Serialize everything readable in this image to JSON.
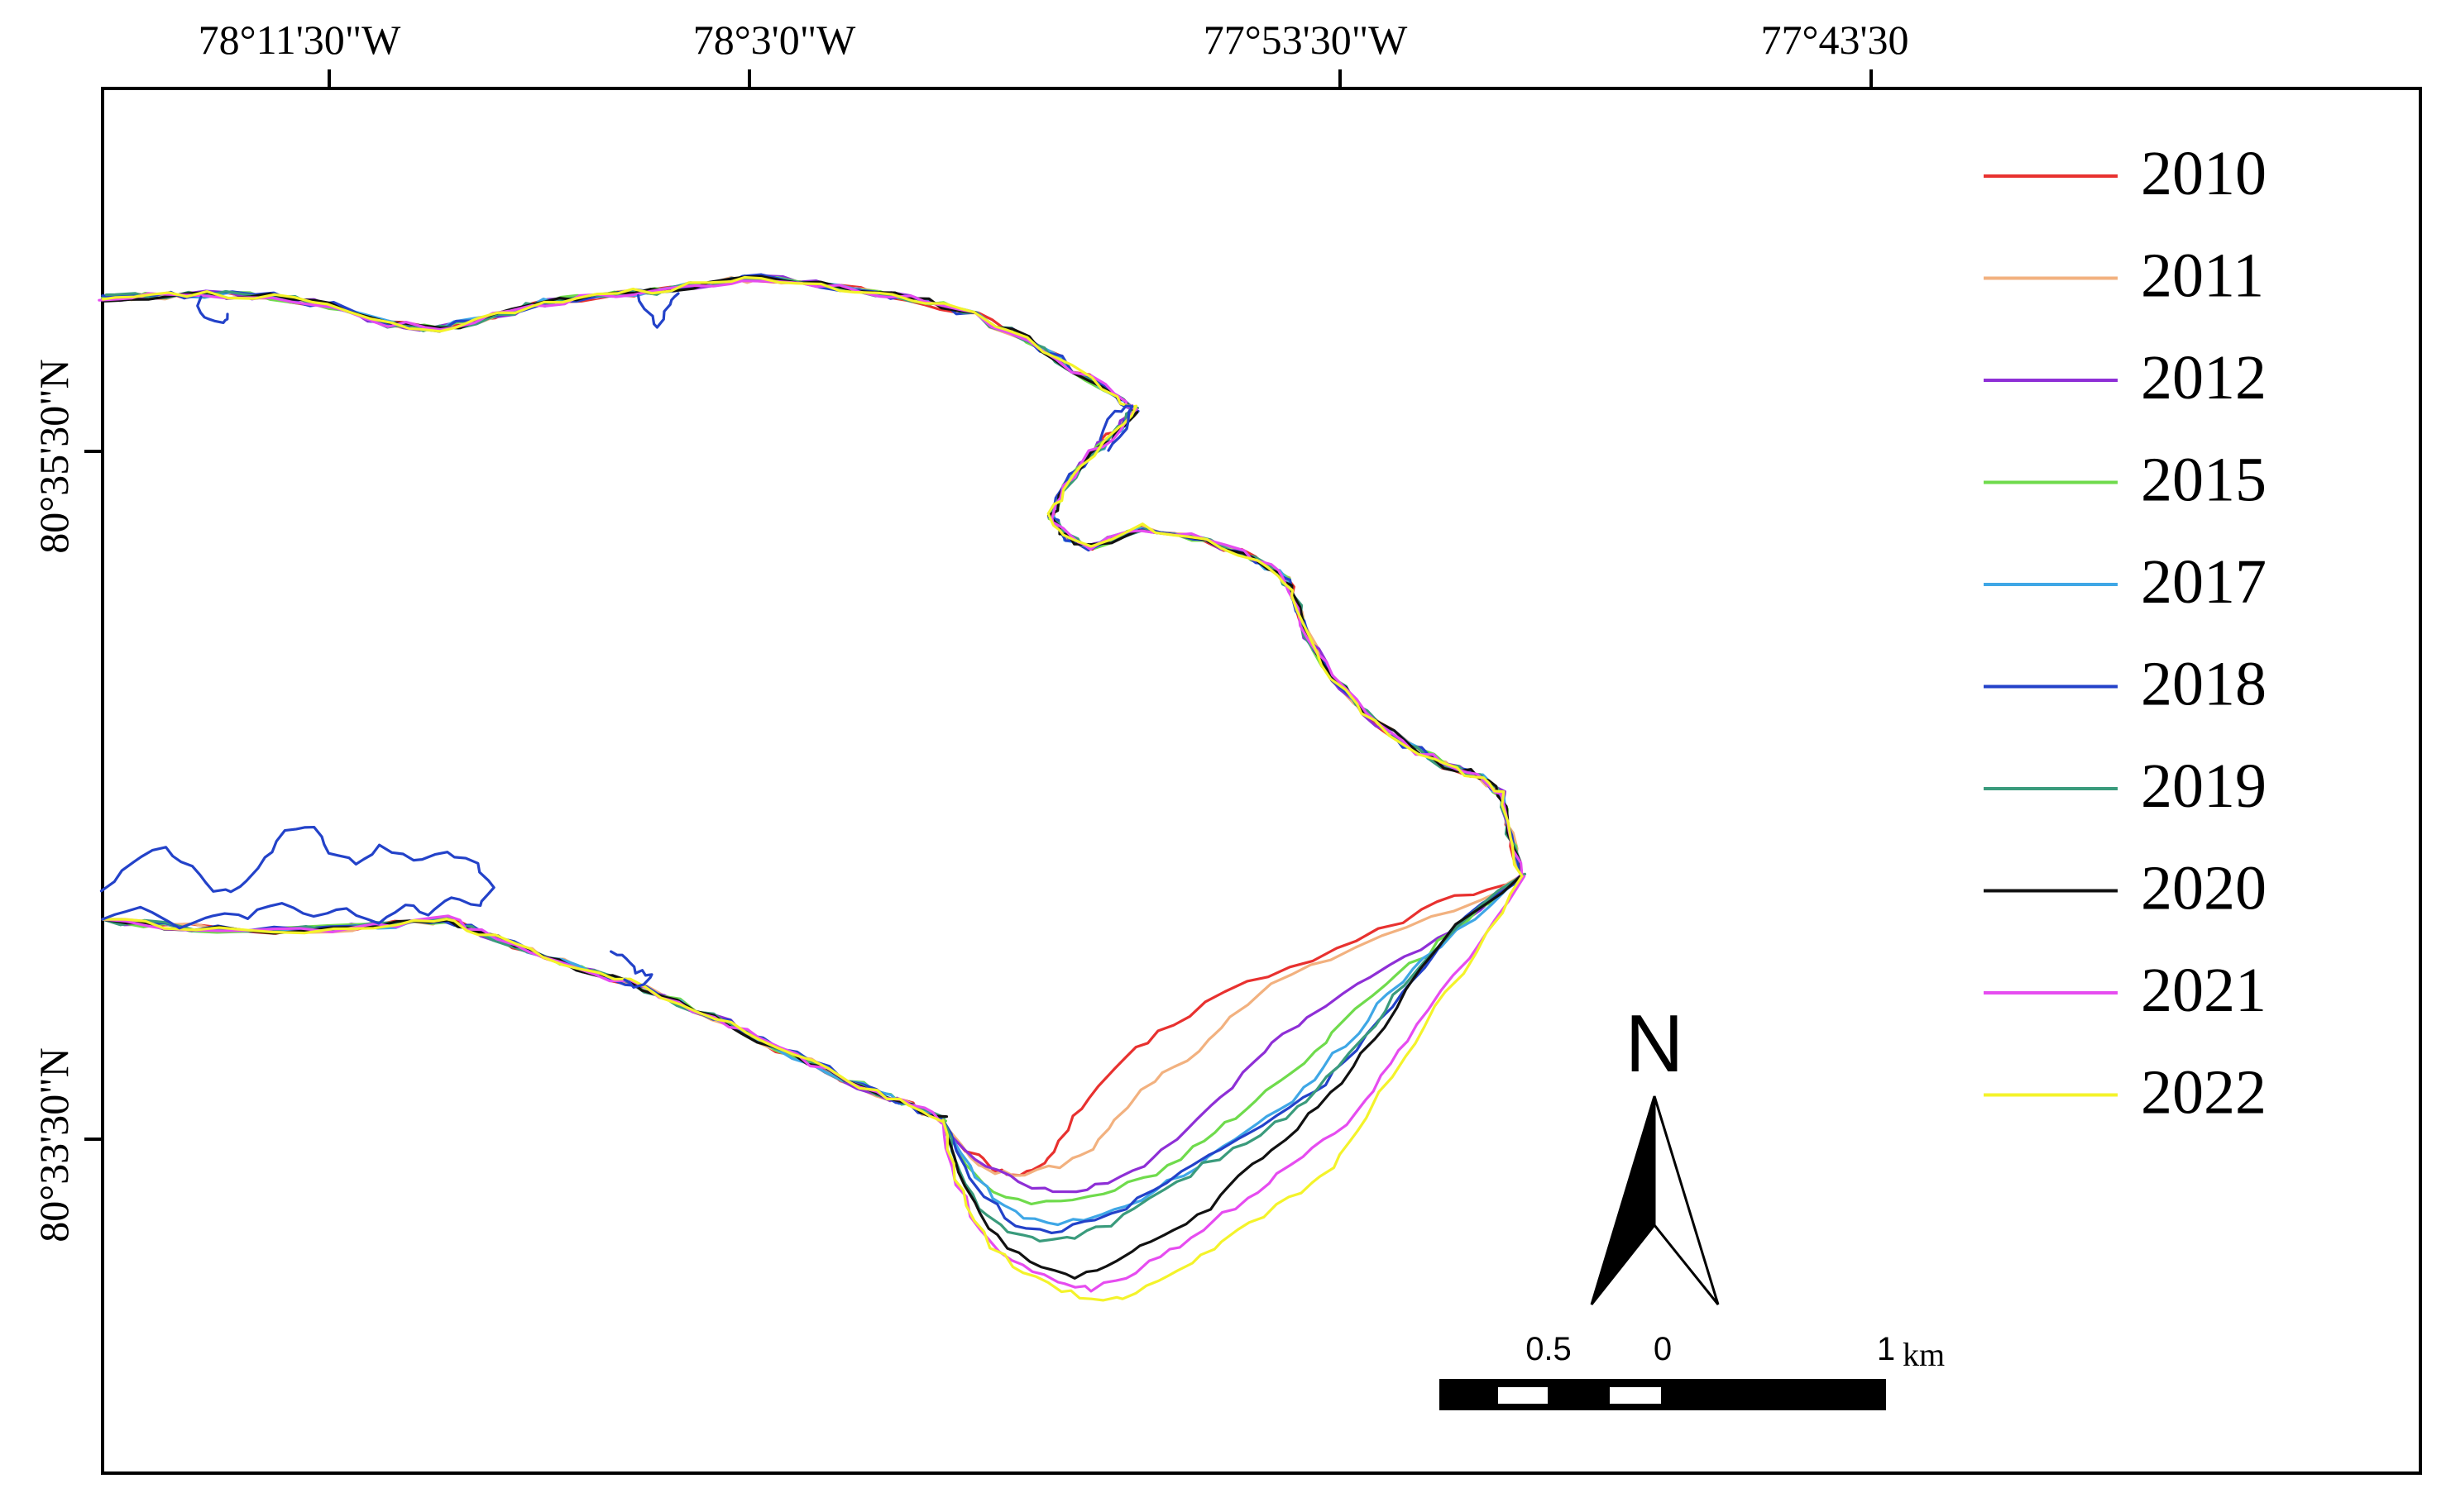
{
  "map": {
    "lon_ticks": [
      "78°11'30\"W",
      "78°3'0\"W",
      "77°53'30\"W",
      "77°43'30"
    ],
    "lat_ticks": [
      "80°35'30\"N",
      "80°33'30\"N"
    ],
    "north_label": "N",
    "scale": {
      "labels": [
        "0.5",
        "0",
        "1"
      ],
      "unit": "km"
    }
  },
  "legend": {
    "items": [
      {
        "label": "2010",
        "color": "#e8312f"
      },
      {
        "label": "2011",
        "color": "#f2b17f"
      },
      {
        "label": "2012",
        "color": "#8e2fd6"
      },
      {
        "label": "2015",
        "color": "#6fdb4c"
      },
      {
        "label": "2017",
        "color": "#3fa7e6"
      },
      {
        "label": "2018",
        "color": "#2342c9"
      },
      {
        "label": "2019",
        "color": "#3a9b7c"
      },
      {
        "label": "2020",
        "color": "#111111"
      },
      {
        "label": "2021",
        "color": "#e64cf0"
      },
      {
        "label": "2022",
        "color": "#f4f32a"
      }
    ]
  }
}
